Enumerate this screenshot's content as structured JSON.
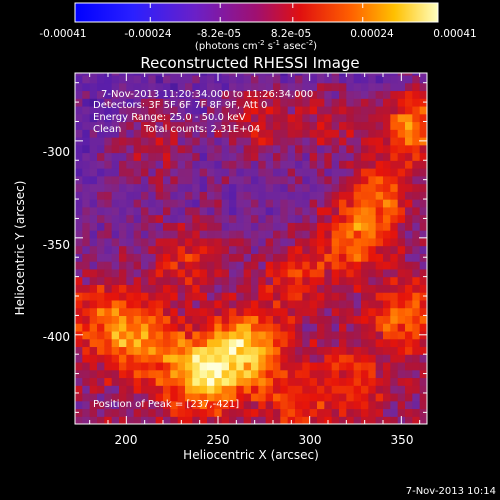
{
  "colorbar": {
    "ticks": [
      "-0.00041",
      "-0.00024",
      "-8.2e-05",
      "8.2e-05",
      "0.00024",
      "0.00041"
    ],
    "unit_main": "(photons cm",
    "unit_sup1": "-2",
    "unit_mid": " s",
    "unit_sup2": "-1",
    "unit_end": " asec",
    "unit_sup3": "-2",
    "unit_close": ")",
    "range": [
      -0.00041,
      0.00041
    ]
  },
  "chart_data": {
    "type": "heatmap",
    "title": "Reconstructed RHESSI Image",
    "xlabel": "Heliocentric X (arcsec)",
    "ylabel": "Heliocentric Y (arcsec)",
    "xlim": [
      172,
      364
    ],
    "ylim": [
      -446,
      -265
    ],
    "xticks": [
      200,
      250,
      300,
      350
    ],
    "yticks": [
      -300,
      -350,
      -400
    ],
    "colormap": "black-blue-purple-red-orange-yellow-white",
    "annotations": {
      "time": "7-Nov-2013 11:20:34.000 to 11:26:34.000",
      "detectors": "Detectors: 3F 5F 6F 7F 8F 9F, Att 0",
      "energy": "Energy Range: 25.0 - 50.0 keV",
      "method": "Clean",
      "counts": "Total counts: 2.31E+04",
      "peak": "Position of Peak = [237,-421]"
    },
    "peak_position": [
      237,
      -421
    ],
    "hotspots": [
      {
        "x": 240,
        "y": -421,
        "value": 0.00041
      },
      {
        "x": 265,
        "y": -408,
        "value": 0.00036
      },
      {
        "x": 355,
        "y": -293,
        "value": 0.00035
      },
      {
        "x": 338,
        "y": -330,
        "value": 0.00026
      },
      {
        "x": 322,
        "y": -352,
        "value": 0.00026
      },
      {
        "x": 350,
        "y": -392,
        "value": 0.00025
      },
      {
        "x": 205,
        "y": -405,
        "value": 0.00028
      },
      {
        "x": 290,
        "y": -372,
        "value": 0.00018
      },
      {
        "x": 230,
        "y": -362,
        "value": 0.00018
      },
      {
        "x": 268,
        "y": -290,
        "value": 0.0002
      },
      {
        "x": 308,
        "y": -292,
        "value": 0.00017
      },
      {
        "x": 183,
        "y": -392,
        "value": 0.0002
      },
      {
        "x": 213,
        "y": -302,
        "value": 0.00016
      },
      {
        "x": 320,
        "y": -425,
        "value": 0.00014
      },
      {
        "x": 290,
        "y": -440,
        "value": 0.00013
      }
    ]
  },
  "footer": {
    "date": "7-Nov-2013 10:14"
  }
}
